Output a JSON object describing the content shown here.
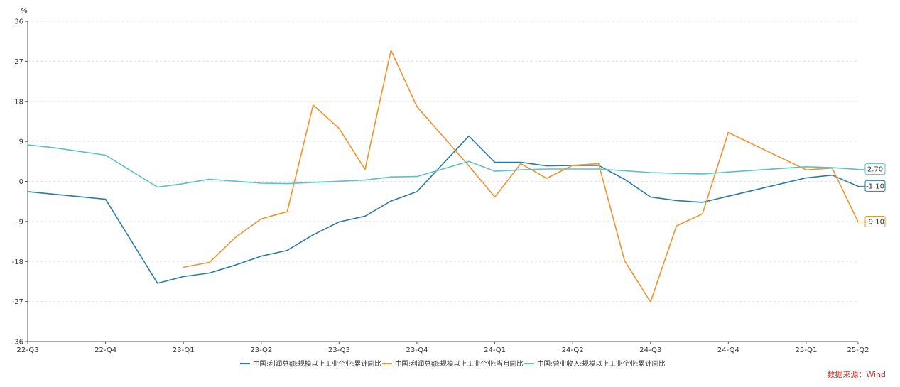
{
  "chart_data": {
    "type": "line",
    "y_unit": "%",
    "ylim": [
      -36,
      36
    ],
    "y_ticks": [
      36,
      27,
      18,
      9,
      0,
      -9,
      -18,
      -27,
      -36
    ],
    "grid": true,
    "x_ticks": [
      {
        "label": "22-Q3",
        "index": 0
      },
      {
        "label": "22-Q4",
        "index": 3
      },
      {
        "label": "23-Q1",
        "index": 6
      },
      {
        "label": "23-Q2",
        "index": 9
      },
      {
        "label": "23-Q3",
        "index": 12
      },
      {
        "label": "23-Q4",
        "index": 15
      },
      {
        "label": "24-Q1",
        "index": 18
      },
      {
        "label": "24-Q2",
        "index": 21
      },
      {
        "label": "24-Q3",
        "index": 24
      },
      {
        "label": "24-Q4",
        "index": 27
      },
      {
        "label": "25-Q1",
        "index": 30
      },
      {
        "label": "25-Q2",
        "index": 32
      }
    ],
    "x_count": 33,
    "series": [
      {
        "name": "中国:利润总额:规模以上工业企业:累计同比",
        "color": "#2a7aa8",
        "end_label": "-1.10",
        "values": [
          -2.3,
          null,
          null,
          -4.0,
          null,
          -22.9,
          -21.4,
          -20.6,
          -18.8,
          -16.8,
          -15.5,
          -12.0,
          -9.1,
          -7.8,
          -4.4,
          -2.3,
          null,
          10.2,
          4.3,
          4.3,
          3.5,
          3.6,
          3.6,
          0.5,
          -3.5,
          -4.3,
          -4.7,
          null,
          null,
          null,
          0.8,
          1.4,
          -1.1
        ]
      },
      {
        "name": "中国:利润总额:规模以上工业企业:当月同比",
        "color": "#f0922e",
        "end_label": "-9.10",
        "values": [
          null,
          null,
          null,
          null,
          null,
          null,
          -19.3,
          -18.2,
          -12.6,
          -8.4,
          -6.8,
          17.2,
          11.9,
          2.7,
          29.5,
          16.8,
          null,
          3.5,
          -3.5,
          4.0,
          0.7,
          3.6,
          4.0,
          -17.8,
          -27.1,
          -10.0,
          -7.3,
          11.0,
          null,
          null,
          2.6,
          3.0,
          -9.1
        ]
      },
      {
        "name": "中国:营业收入:规模以上工业企业:累计同比",
        "color": "#5fc0c4",
        "end_label": "2.70",
        "values": [
          8.2,
          7.6,
          null,
          5.9,
          null,
          -1.3,
          -0.5,
          0.5,
          null,
          -0.4,
          -0.5,
          null,
          null,
          0.3,
          1.0,
          1.1,
          null,
          4.5,
          2.3,
          2.6,
          2.8,
          2.8,
          2.8,
          2.4,
          2.0,
          1.8,
          1.7,
          2.1,
          null,
          2.9,
          3.3,
          3.1,
          2.7
        ]
      }
    ]
  },
  "source_label": "数据来源：Wind"
}
